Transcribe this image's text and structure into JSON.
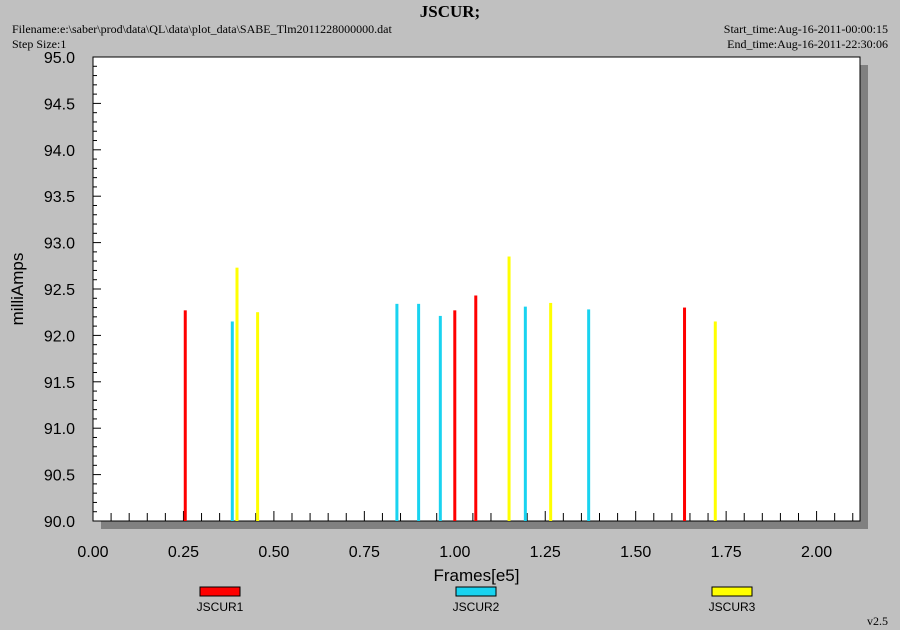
{
  "header": {
    "filename": "Filename:e:\\saber\\prod\\data\\QL\\data\\plot_data\\SABE_Tlm2011228000000.dat",
    "step_size": "Step Size:1",
    "start_time": "Start_time:Aug-16-2011-00:00:15",
    "end_time": "End_time:Aug-16-2011-22:30:06",
    "version": "v2.5"
  },
  "chart_data": {
    "type": "bar",
    "title": "JSCUR;",
    "xlabel": "Frames[e5]",
    "ylabel": "milliAmps",
    "xlim": [
      0,
      2.12
    ],
    "ylim": [
      90.0,
      95.0
    ],
    "x_ticks": [
      "0.00",
      "0.25",
      "0.50",
      "0.75",
      "1.00",
      "1.25",
      "1.50",
      "1.75",
      "2.00"
    ],
    "y_ticks": [
      "90.0",
      "90.5",
      "91.0",
      "91.5",
      "92.0",
      "92.5",
      "93.0",
      "93.5",
      "94.0",
      "94.5",
      "95.0"
    ],
    "legend_position": "bottom",
    "series": [
      {
        "name": "JSCUR1",
        "color": "#ff0000",
        "x": [
          0.255,
          1.0,
          1.058,
          1.635
        ],
        "values": [
          92.27,
          92.27,
          92.43,
          92.3
        ]
      },
      {
        "name": "JSCUR2",
        "color": "#19d3f0",
        "x": [
          0.385,
          0.84,
          0.9,
          0.96,
          1.195,
          1.37
        ],
        "values": [
          92.15,
          92.34,
          92.34,
          92.21,
          92.31,
          92.28
        ]
      },
      {
        "name": "JSCUR3",
        "color": "#ffff00",
        "x": [
          0.398,
          0.455,
          1.15,
          1.265,
          1.72
        ],
        "values": [
          92.73,
          92.25,
          92.85,
          92.35,
          92.15
        ]
      }
    ]
  }
}
